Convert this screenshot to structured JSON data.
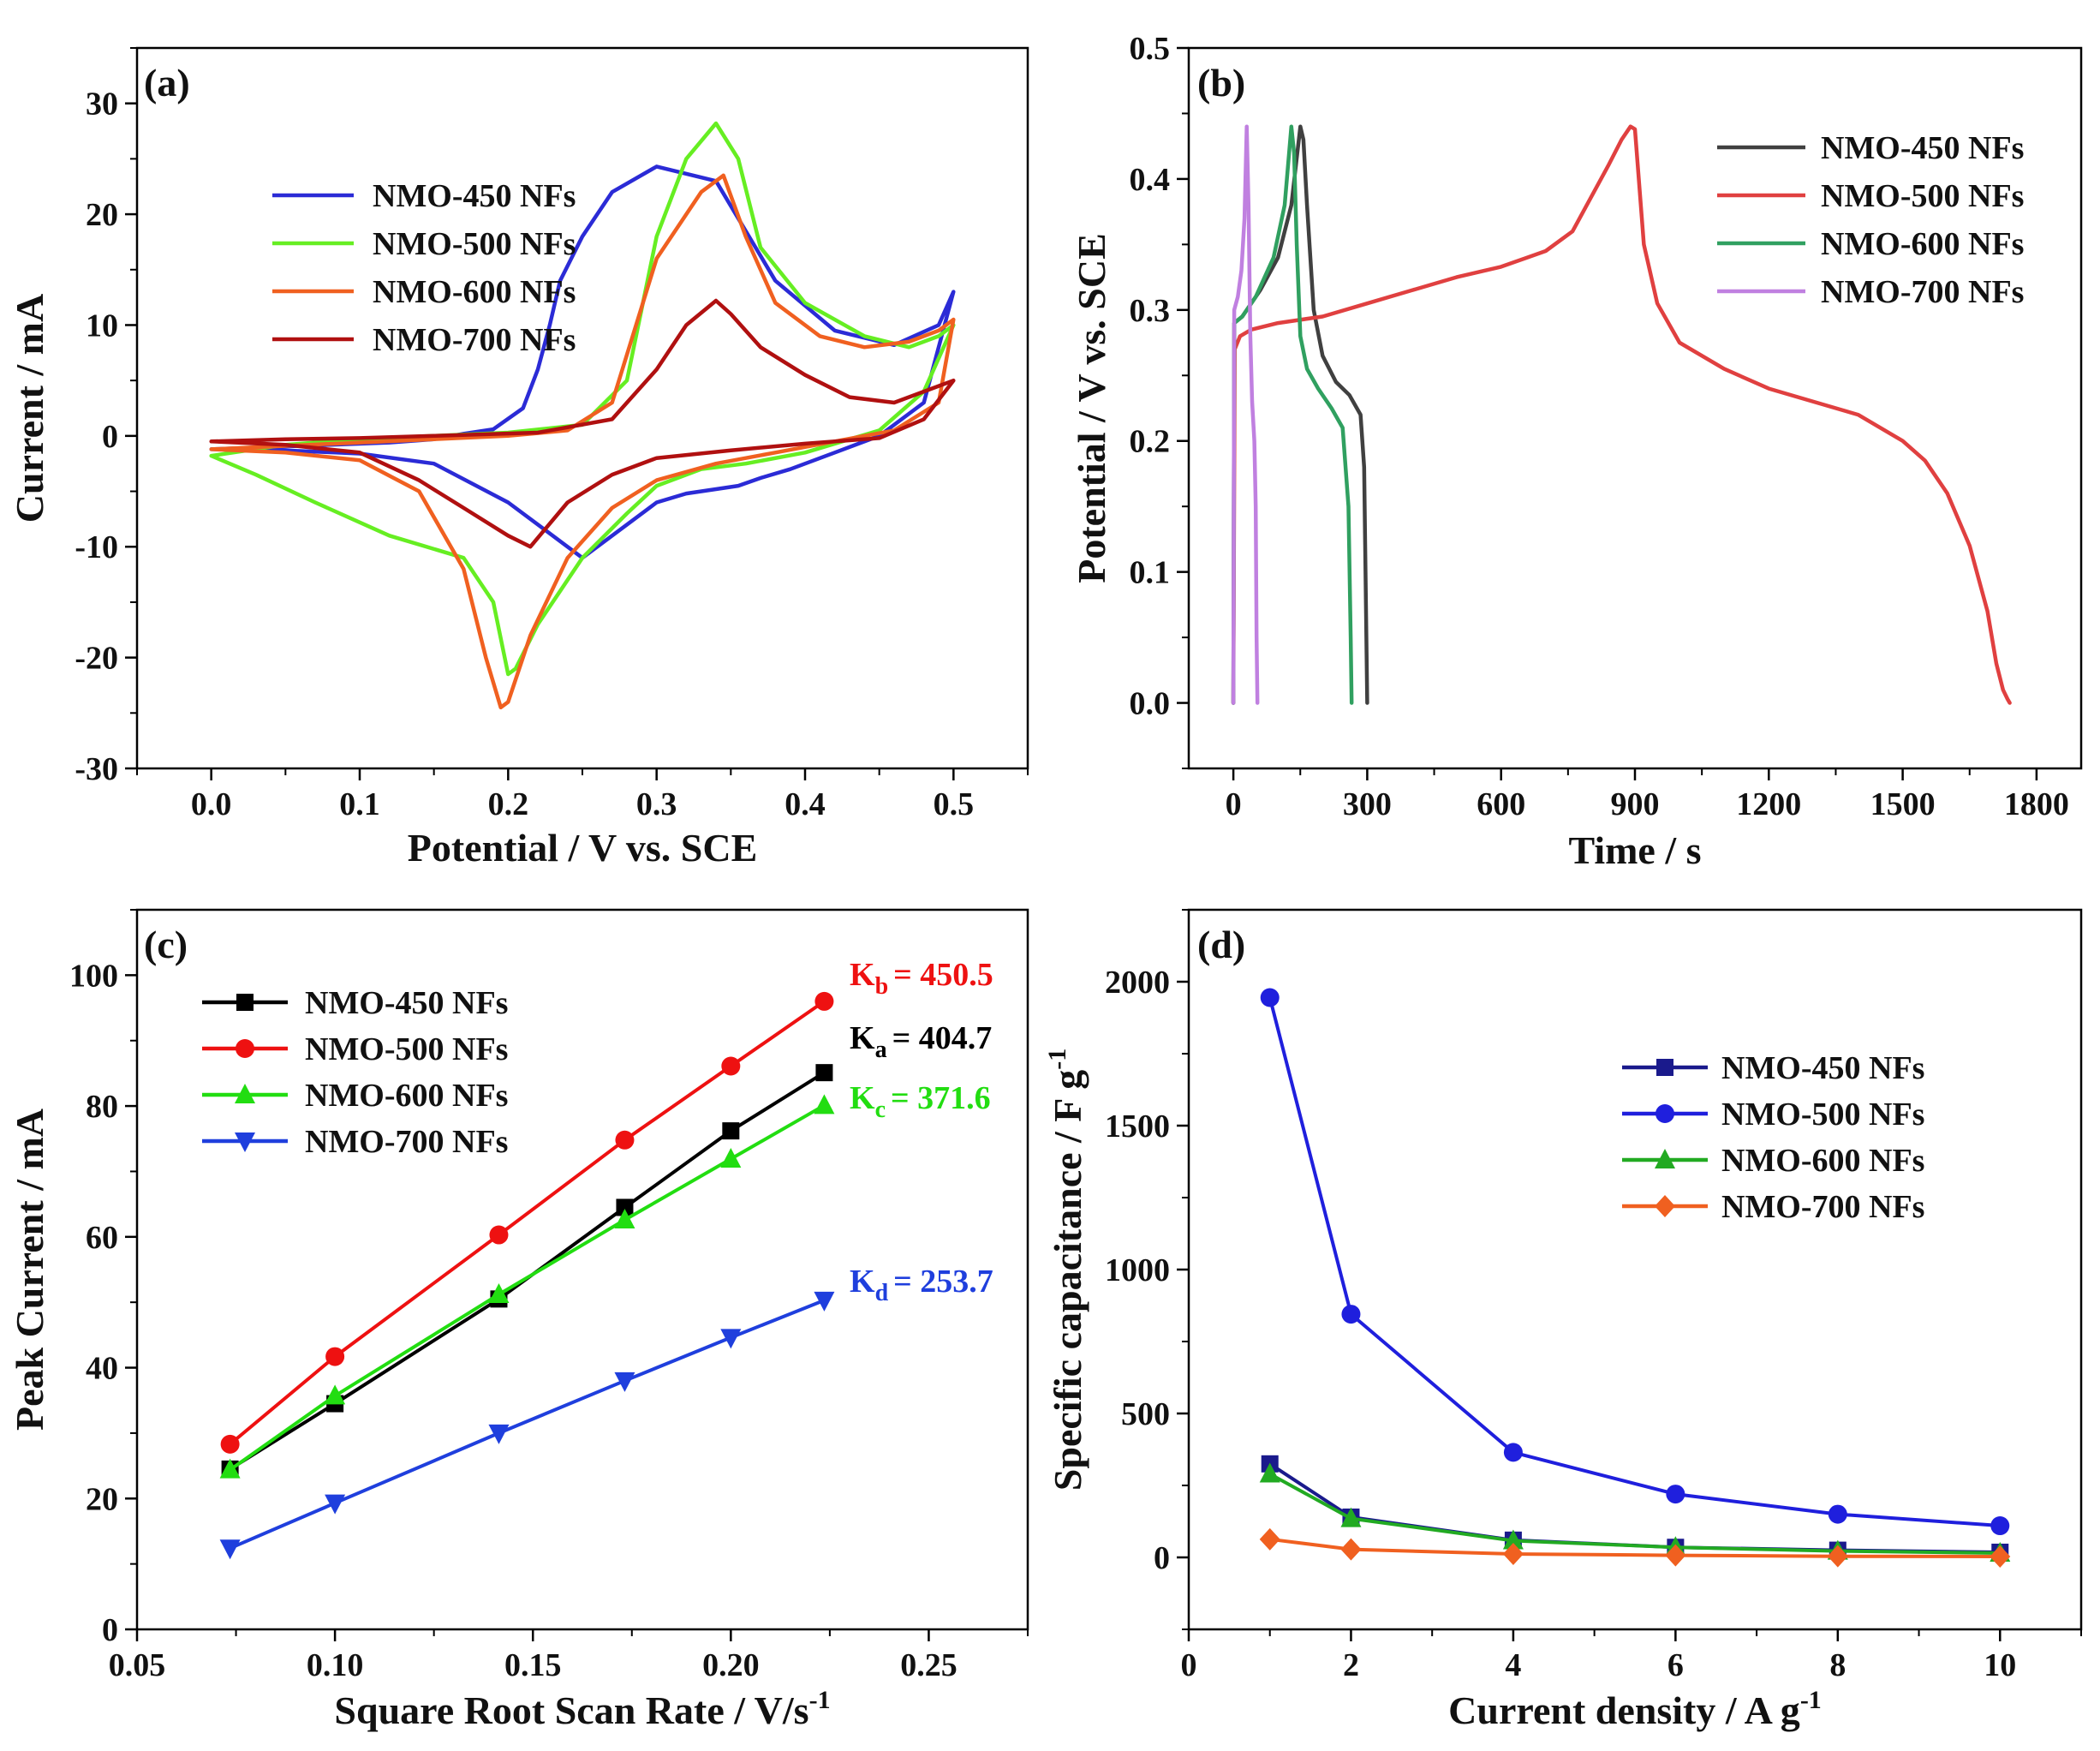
{
  "chart_data": [
    {
      "id": "a",
      "type": "line",
      "panel_label": "(a)",
      "xlabel": "Potential / V vs. SCE",
      "ylabel": "Current / mA",
      "xlim": [
        -0.05,
        0.55
      ],
      "ylim": [
        -30,
        35
      ],
      "xticks": [
        0.0,
        0.1,
        0.2,
        0.3,
        0.4,
        0.5
      ],
      "xtick_labels": [
        "0.0",
        "0.1",
        "0.2",
        "0.3",
        "0.4",
        "0.5"
      ],
      "yticks": [
        -30,
        -20,
        -10,
        0,
        10,
        20,
        30
      ],
      "ytick_labels": [
        "-30",
        "-20",
        "-10",
        "0",
        "10",
        "20",
        "30"
      ],
      "legend_position": "upper-left",
      "series": [
        {
          "name": "NMO-450 NFs",
          "color": "#2b2bd6",
          "x": [
            0.0,
            0.05,
            0.1,
            0.15,
            0.2,
            0.25,
            0.28,
            0.3,
            0.32,
            0.34,
            0.355,
            0.37,
            0.39,
            0.42,
            0.45,
            0.48,
            0.5,
            0.49,
            0.46,
            0.42,
            0.38,
            0.34,
            0.3,
            0.27,
            0.25,
            0.235,
            0.228,
            0.22,
            0.21,
            0.19,
            0.17,
            0.15,
            0.12,
            0.08,
            0.04,
            0.0
          ],
          "y": [
            -1.2,
            -1.3,
            -1.6,
            -2.5,
            -6.0,
            -11,
            -8,
            -6,
            -5.2,
            -4.8,
            -4.5,
            -3.8,
            -3,
            -1.5,
            0,
            3,
            13,
            10,
            8.2,
            9.5,
            14,
            23,
            24.3,
            22,
            18,
            14,
            10,
            6,
            2.5,
            0.6,
            0.2,
            -0.3,
            -0.6,
            -0.8,
            -1.0,
            -1.2
          ]
        },
        {
          "name": "NMO-500 NFs",
          "color": "#66ee22",
          "x": [
            0.0,
            0.03,
            0.07,
            0.12,
            0.17,
            0.19,
            0.2,
            0.205,
            0.22,
            0.25,
            0.28,
            0.3,
            0.33,
            0.36,
            0.4,
            0.45,
            0.48,
            0.5,
            0.49,
            0.47,
            0.44,
            0.4,
            0.37,
            0.355,
            0.34,
            0.32,
            0.3,
            0.28,
            0.25,
            0.2,
            0.15,
            0.1,
            0.05,
            0.0
          ],
          "y": [
            -1.8,
            -3.5,
            -6,
            -9,
            -11,
            -15,
            -21.5,
            -21,
            -17,
            -11,
            -7,
            -4.5,
            -3,
            -2.5,
            -1.5,
            0.5,
            4,
            10,
            9,
            8,
            9,
            12,
            17,
            25,
            28.2,
            25,
            18,
            5,
            1,
            0.3,
            0,
            -0.3,
            -0.8,
            -1.8
          ]
        },
        {
          "name": "NMO-600 NFs",
          "color": "#f06020",
          "x": [
            0.0,
            0.05,
            0.1,
            0.14,
            0.17,
            0.185,
            0.195,
            0.2,
            0.215,
            0.24,
            0.27,
            0.3,
            0.34,
            0.38,
            0.42,
            0.46,
            0.49,
            0.5,
            0.49,
            0.47,
            0.44,
            0.41,
            0.38,
            0.36,
            0.345,
            0.33,
            0.3,
            0.27,
            0.24,
            0.2,
            0.15,
            0.1,
            0.05,
            0.0
          ],
          "y": [
            -1.2,
            -1.5,
            -2.2,
            -5,
            -12,
            -20,
            -24.5,
            -24,
            -18,
            -11,
            -6.5,
            -4,
            -2.5,
            -1.5,
            -0.5,
            0.5,
            3,
            10.5,
            9.5,
            8.5,
            8,
            9,
            12,
            18,
            23.5,
            22,
            16,
            3,
            0.5,
            0,
            -0.3,
            -0.6,
            -0.9,
            -1.2
          ]
        },
        {
          "name": "NMO-700 NFs",
          "color": "#b01010",
          "x": [
            0.0,
            0.05,
            0.1,
            0.14,
            0.17,
            0.2,
            0.215,
            0.24,
            0.27,
            0.3,
            0.35,
            0.4,
            0.45,
            0.48,
            0.5,
            0.49,
            0.46,
            0.43,
            0.4,
            0.37,
            0.35,
            0.34,
            0.32,
            0.3,
            0.27,
            0.22,
            0.15,
            0.1,
            0.05,
            0.0
          ],
          "y": [
            -0.5,
            -0.8,
            -1.5,
            -4,
            -6.5,
            -9,
            -10,
            -6,
            -3.5,
            -2,
            -1.3,
            -0.7,
            -0.2,
            1.5,
            5,
            4.5,
            3,
            3.5,
            5.5,
            8,
            11,
            12.2,
            10,
            6,
            1.5,
            0.3,
            0,
            -0.2,
            -0.3,
            -0.5
          ]
        }
      ]
    },
    {
      "id": "b",
      "type": "line",
      "panel_label": "(b)",
      "xlabel": "Time / s",
      "ylabel": "Potential / V vs. SCE",
      "xlim": [
        -100,
        1900
      ],
      "ylim": [
        -0.05,
        0.5
      ],
      "xticks": [
        0,
        300,
        600,
        900,
        1200,
        1500,
        1800
      ],
      "xtick_labels": [
        "0",
        "300",
        "600",
        "900",
        "1200",
        "1500",
        "1800"
      ],
      "yticks": [
        0.0,
        0.1,
        0.2,
        0.3,
        0.4,
        0.5
      ],
      "ytick_labels": [
        "0.0",
        "0.1",
        "0.2",
        "0.3",
        "0.4",
        "0.5"
      ],
      "legend_position": "upper-right",
      "series": [
        {
          "name": "NMO-450 NFs",
          "color": "#404040",
          "x": [
            0,
            2,
            20,
            60,
            100,
            130,
            150,
            157,
            165,
            180,
            200,
            230,
            260,
            285,
            293,
            298,
            300
          ],
          "y": [
            0.0,
            0.29,
            0.295,
            0.315,
            0.34,
            0.38,
            0.44,
            0.43,
            0.38,
            0.3,
            0.265,
            0.245,
            0.235,
            0.22,
            0.18,
            0.05,
            0.0
          ]
        },
        {
          "name": "NMO-500 NFs",
          "color": "#e04040",
          "x": [
            0,
            3,
            15,
            40,
            100,
            200,
            300,
            400,
            500,
            600,
            700,
            760,
            800,
            840,
            870,
            890,
            900,
            920,
            950,
            1000,
            1100,
            1200,
            1300,
            1400,
            1500,
            1550,
            1600,
            1650,
            1690,
            1710,
            1725,
            1735,
            1740
          ],
          "y": [
            0.0,
            0.27,
            0.28,
            0.285,
            0.29,
            0.295,
            0.305,
            0.315,
            0.325,
            0.333,
            0.345,
            0.36,
            0.385,
            0.41,
            0.43,
            0.44,
            0.438,
            0.35,
            0.305,
            0.275,
            0.255,
            0.24,
            0.23,
            0.22,
            0.2,
            0.185,
            0.16,
            0.12,
            0.07,
            0.03,
            0.01,
            0.003,
            0.0
          ]
        },
        {
          "name": "NMO-600 NFs",
          "color": "#30a060",
          "x": [
            0,
            2,
            20,
            50,
            90,
            115,
            130,
            136,
            142,
            150,
            165,
            190,
            220,
            245,
            258,
            263,
            265
          ],
          "y": [
            0.0,
            0.29,
            0.295,
            0.31,
            0.34,
            0.38,
            0.44,
            0.42,
            0.35,
            0.28,
            0.255,
            0.24,
            0.225,
            0.21,
            0.15,
            0.05,
            0.0
          ]
        },
        {
          "name": "NMO-700 NFs",
          "color": "#c080e0",
          "x": [
            0,
            2,
            10,
            18,
            25,
            30,
            34,
            38,
            42,
            47,
            50,
            52,
            54
          ],
          "y": [
            0.0,
            0.3,
            0.31,
            0.33,
            0.37,
            0.44,
            0.38,
            0.28,
            0.23,
            0.2,
            0.15,
            0.05,
            0.0
          ]
        }
      ]
    },
    {
      "id": "c",
      "type": "line",
      "panel_label": "(c)",
      "xlabel": "Square Root Scan Rate / V/s",
      "xlabel_sup": "-1",
      "ylabel": "Peak Current / mA",
      "xlim": [
        0.05,
        0.275
      ],
      "ylim": [
        0,
        110
      ],
      "xticks": [
        0.05,
        0.1,
        0.15,
        0.2,
        0.25
      ],
      "xtick_labels": [
        "0.05",
        "0.10",
        "0.15",
        "0.20",
        "0.25"
      ],
      "yticks": [
        0,
        20,
        40,
        60,
        80,
        100
      ],
      "ytick_labels": [
        "0",
        "20",
        "40",
        "60",
        "80",
        "100"
      ],
      "legend_position": "upper-left",
      "series": [
        {
          "name": "NMO-450 NFs",
          "color": "#000000",
          "marker": "square",
          "x": [
            0.0735,
            0.1,
            0.1414,
            0.1732,
            0.2,
            0.2236
          ],
          "y": [
            24.5,
            34.5,
            50.5,
            64.5,
            76.2,
            85.1
          ]
        },
        {
          "name": "NMO-500 NFs",
          "color": "#ee1111",
          "marker": "circle",
          "x": [
            0.0735,
            0.1,
            0.1414,
            0.1732,
            0.2,
            0.2236
          ],
          "y": [
            28.3,
            41.7,
            60.3,
            74.8,
            86.1,
            96.0
          ]
        },
        {
          "name": "NMO-600 NFs",
          "color": "#22dd11",
          "marker": "triangle-up",
          "x": [
            0.0735,
            0.1,
            0.1414,
            0.1732,
            0.2,
            0.2236
          ],
          "y": [
            24.4,
            35.7,
            51.2,
            62.6,
            71.9,
            80.1
          ]
        },
        {
          "name": "NMO-700 NFs",
          "color": "#1f3fdd",
          "marker": "triangle-down",
          "x": [
            0.0735,
            0.1,
            0.1414,
            0.1732,
            0.2,
            0.2236
          ],
          "y": [
            12.4,
            19.3,
            30.0,
            38.0,
            44.6,
            50.3
          ]
        }
      ],
      "annotations": [
        {
          "main": "K",
          "sub": "b",
          "value": "= 450.5",
          "color": "#ee1111"
        },
        {
          "main": "K",
          "sub": "a",
          "value": "= 404.7",
          "color": "#000000"
        },
        {
          "main": "K",
          "sub": "c",
          "value": "= 371.6",
          "color": "#22dd11"
        },
        {
          "main": "K",
          "sub": "d",
          "value": "= 253.7",
          "color": "#1f3fdd"
        }
      ]
    },
    {
      "id": "d",
      "type": "line",
      "panel_label": "(d)",
      "xlabel": "Current density / A g",
      "xlabel_sup": "-1",
      "ylabel": "Specific capacitance / F g",
      "ylabel_sup": "-1",
      "xlim": [
        0,
        11
      ],
      "ylim": [
        -250,
        2250
      ],
      "xticks": [
        0,
        2,
        4,
        6,
        8,
        10
      ],
      "xtick_labels": [
        "0",
        "2",
        "4",
        "6",
        "8",
        "10"
      ],
      "yticks": [
        0,
        500,
        1000,
        1500,
        2000
      ],
      "ytick_labels": [
        "0",
        "500",
        "1000",
        "1500",
        "2000"
      ],
      "legend_position": "right",
      "series": [
        {
          "name": "NMO-450 NFs",
          "color": "#1a1a8c",
          "marker": "square",
          "x": [
            1,
            2,
            4,
            6,
            8,
            10
          ],
          "y": [
            325,
            140,
            60,
            35,
            25,
            18
          ]
        },
        {
          "name": "NMO-500 NFs",
          "color": "#1f1fdd",
          "marker": "circle",
          "x": [
            1,
            2,
            4,
            6,
            8,
            10
          ],
          "y": [
            1945,
            845,
            365,
            220,
            150,
            110
          ]
        },
        {
          "name": "NMO-600 NFs",
          "color": "#22aa22",
          "marker": "triangle-up",
          "x": [
            1,
            2,
            4,
            6,
            8,
            10
          ],
          "y": [
            290,
            135,
            58,
            35,
            22,
            15
          ]
        },
        {
          "name": "NMO-700 NFs",
          "color": "#f06020",
          "marker": "diamond",
          "x": [
            1,
            2,
            4,
            6,
            8,
            10
          ],
          "y": [
            63,
            28,
            12,
            7,
            4,
            3
          ]
        }
      ]
    }
  ]
}
